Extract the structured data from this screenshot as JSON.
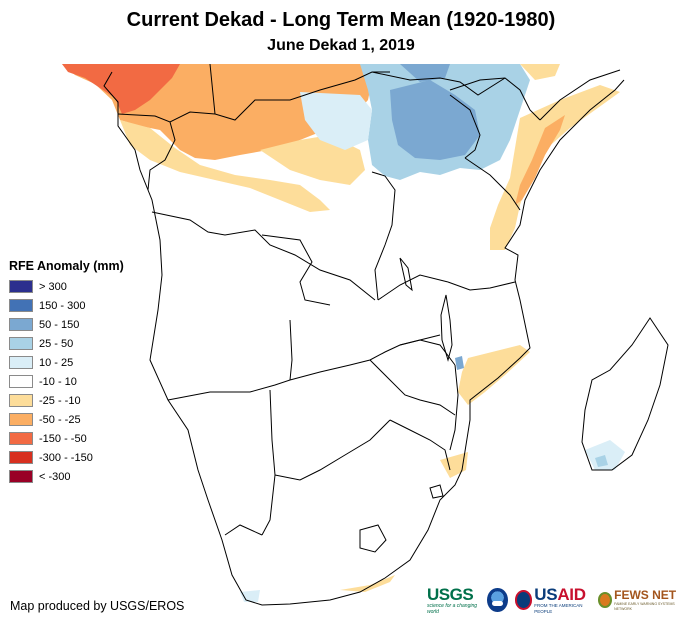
{
  "header": {
    "title": "Current Dekad - Long Term Mean (1920-1980)",
    "subtitle": "June Dekad 1, 2019"
  },
  "legend": {
    "title": "RFE Anomaly (mm)",
    "items": [
      {
        "label": "> 300",
        "color": "#2c2f8e"
      },
      {
        "label": "150 - 300",
        "color": "#4272b5"
      },
      {
        "label": "50 - 150",
        "color": "#7ba8d1"
      },
      {
        "label": "25 - 50",
        "color": "#a9d2e6"
      },
      {
        "label": "10 - 25",
        "color": "#daeef7"
      },
      {
        "label": "-10 - 10",
        "color": "#ffffff"
      },
      {
        "label": "-25 - -10",
        "color": "#fddd9a"
      },
      {
        "label": "-50 - -25",
        "color": "#fbae63"
      },
      {
        "label": "-150 - -50",
        "color": "#f26a43"
      },
      {
        "label": "-300 - -150",
        "color": "#d7301f"
      },
      {
        "label": "< -300",
        "color": "#990026"
      }
    ]
  },
  "footer": {
    "credit": "Map produced by USGS/EROS"
  },
  "logos": {
    "usgs": {
      "name": "USGS",
      "tagline": "science for a changing world"
    },
    "noaa": {
      "name": "noaa-emblem"
    },
    "usaid": {
      "us": "US",
      "aid": "AID",
      "tagline": "FROM THE AMERICAN PEOPLE"
    },
    "fews": {
      "name": "FEWS NET",
      "tagline": "FAMINE EARLY WARNING SYSTEMS NETWORK"
    }
  }
}
